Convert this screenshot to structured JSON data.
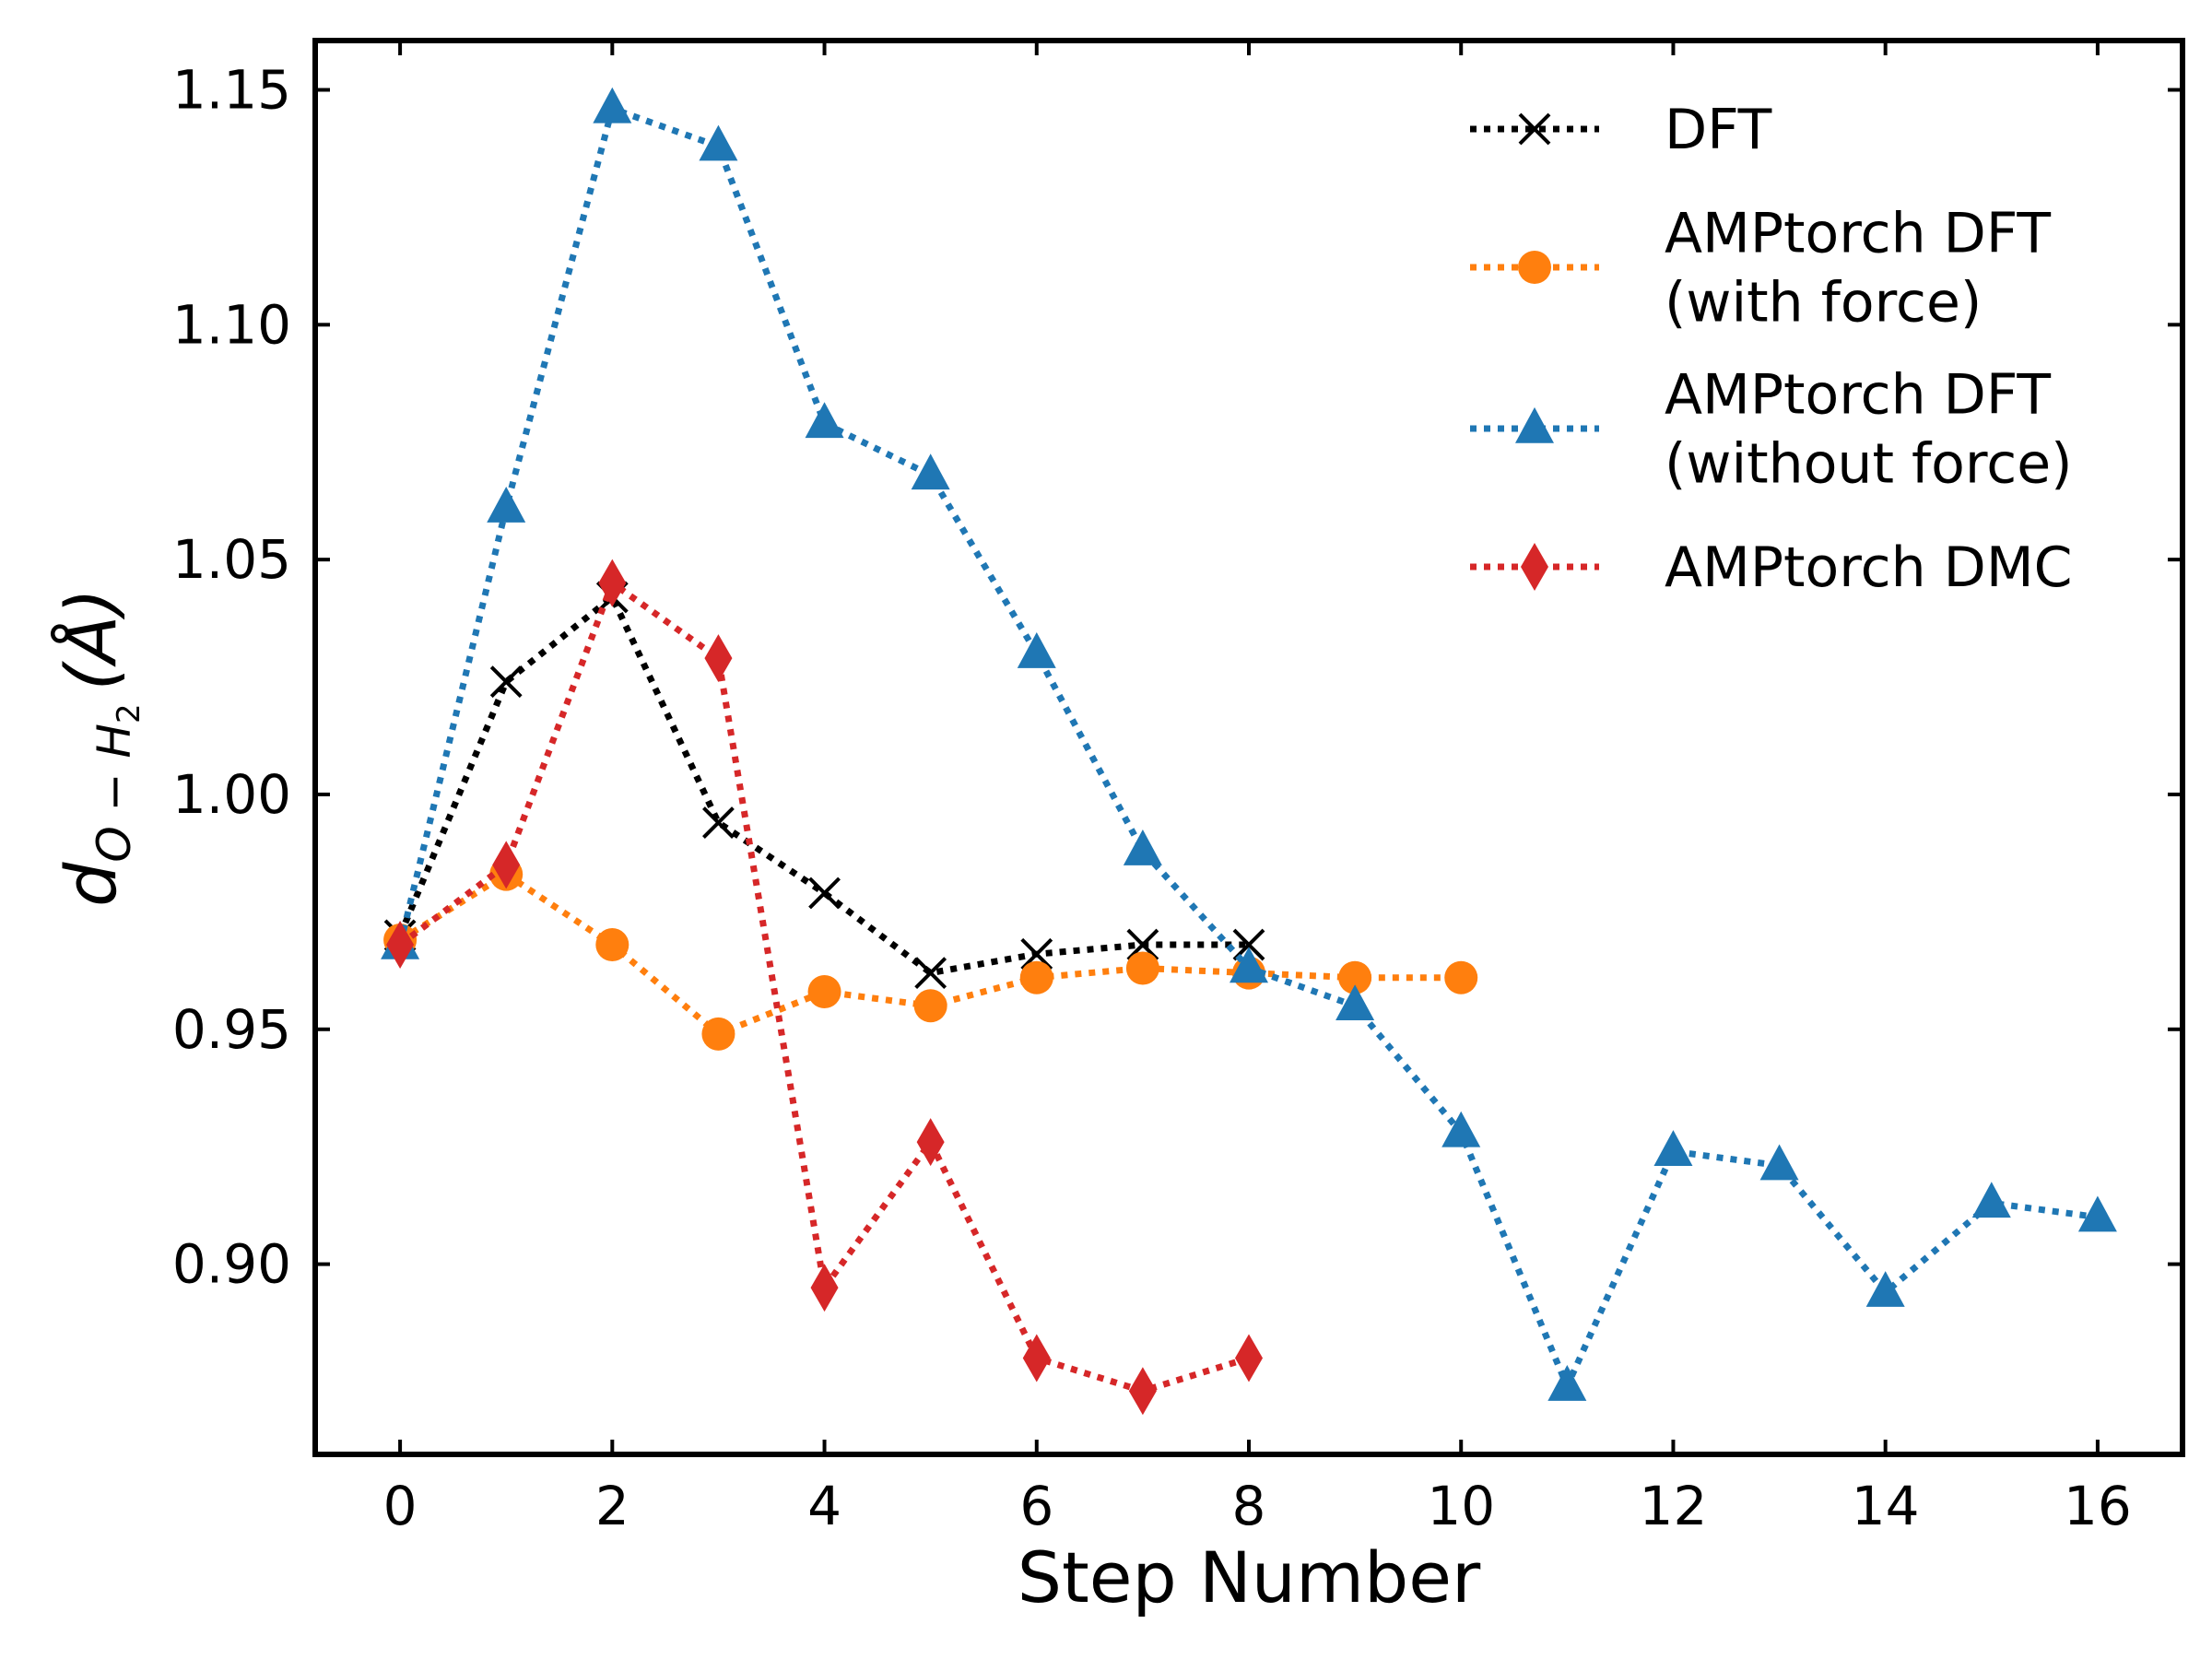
{
  "chart_data": {
    "type": "line",
    "title": "",
    "xlabel": "Step Number",
    "ylabel": {
      "base": "d",
      "sub1": "O − H",
      "sub2": "2",
      "unit": "(Å)"
    },
    "xlim": [
      -0.8,
      16.8
    ],
    "ylim": [
      0.8595,
      1.1605
    ],
    "xticks": [
      0,
      2,
      4,
      6,
      8,
      10,
      12,
      14,
      16
    ],
    "xtick_labels": [
      "0",
      "2",
      "4",
      "6",
      "8",
      "10",
      "12",
      "14",
      "16"
    ],
    "yticks": [
      0.9,
      0.95,
      1.0,
      1.05,
      1.1,
      1.15
    ],
    "ytick_labels": [
      "0.90",
      "0.95",
      "1.00",
      "1.05",
      "1.10",
      "1.15"
    ],
    "grid": false,
    "legend_position": "top-right",
    "series": [
      {
        "name": "DFT",
        "color": "#000000",
        "marker": "x",
        "linestyle": "dotted",
        "x": [
          0,
          1,
          2,
          3,
          4,
          5,
          6,
          7,
          8
        ],
        "y": [
          0.97,
          1.024,
          1.042,
          0.994,
          0.979,
          0.962,
          0.966,
          0.968,
          0.968
        ]
      },
      {
        "name": "AMPtorch DFT\n(with force)",
        "color": "#ff7f0e",
        "marker": "circle",
        "linestyle": "dotted",
        "x": [
          0,
          1,
          2,
          3,
          4,
          5,
          6,
          7,
          8,
          9,
          10
        ],
        "y": [
          0.969,
          0.983,
          0.968,
          0.949,
          0.958,
          0.955,
          0.961,
          0.963,
          0.962,
          0.961,
          0.961
        ]
      },
      {
        "name": "AMPtorch DFT\n(without force)",
        "color": "#1f77b4",
        "marker": "triangle",
        "linestyle": "dotted",
        "x": [
          0,
          1,
          2,
          3,
          4,
          5,
          6,
          7,
          8,
          9,
          10,
          11,
          12,
          13,
          14,
          15,
          16
        ],
        "y": [
          0.968,
          1.061,
          1.146,
          1.138,
          1.079,
          1.068,
          1.03,
          0.988,
          0.963,
          0.955,
          0.928,
          0.874,
          0.924,
          0.921,
          0.894,
          0.913,
          0.91
        ]
      },
      {
        "name": "AMPtorch DMC",
        "color": "#d62728",
        "marker": "diamond",
        "linestyle": "dotted",
        "x": [
          0,
          1,
          2,
          3,
          4,
          5,
          6,
          7,
          8
        ],
        "y": [
          0.968,
          0.985,
          1.045,
          1.029,
          0.895,
          0.926,
          0.88,
          0.873,
          0.88
        ]
      }
    ]
  }
}
